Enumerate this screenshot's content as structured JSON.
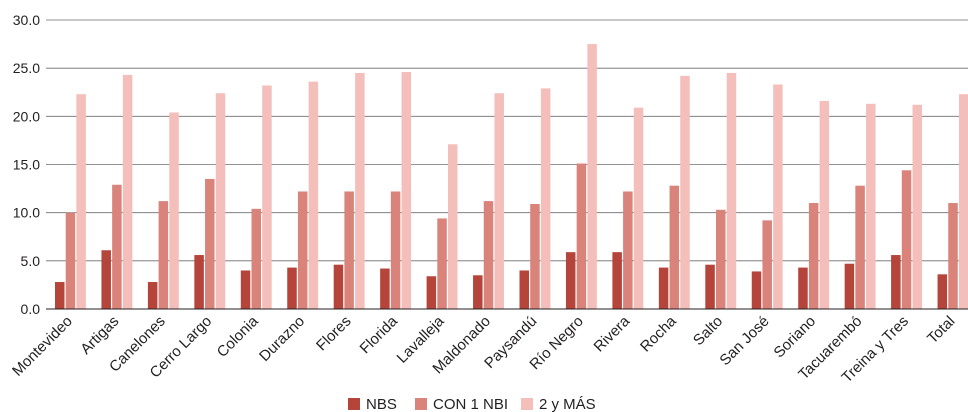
{
  "chart_data": {
    "type": "bar",
    "title": "",
    "xlabel": "",
    "ylabel": "",
    "ylim": [
      0,
      30
    ],
    "yticks": [
      "0.0",
      "5.0",
      "10.0",
      "15.0",
      "20.0",
      "25.0",
      "30.0"
    ],
    "grid": true,
    "legend_position": "bottom",
    "categories": [
      "Montevideo",
      "Artigas",
      "Canelones",
      "Cerro Largo",
      "Colonia",
      "Durazno",
      "Flores",
      "Florida",
      "Lavalleja",
      "Maldonado",
      "Paysandú",
      "Río Negro",
      "Rivera",
      "Rocha",
      "Salto",
      "San José",
      "Soriano",
      "Tacuarembó",
      "Treina y Tres",
      "Total"
    ],
    "series": [
      {
        "name": "NBS",
        "color": "#b5443a",
        "values": [
          2.8,
          6.1,
          2.8,
          5.6,
          4.0,
          4.3,
          4.6,
          4.2,
          3.4,
          3.5,
          4.0,
          5.9,
          5.9,
          4.3,
          4.6,
          3.9,
          4.3,
          4.7,
          5.6,
          3.6
        ]
      },
      {
        "name": "CON 1 NBI",
        "color": "#d9837b",
        "values": [
          10.0,
          12.9,
          11.2,
          13.5,
          10.4,
          12.2,
          12.2,
          12.2,
          9.4,
          11.2,
          10.9,
          15.1,
          12.2,
          12.8,
          10.3,
          9.2,
          11.0,
          12.8,
          14.4,
          11.0
        ]
      },
      {
        "name": "2 y MÁS",
        "color": "#f4bfba",
        "values": [
          22.3,
          24.3,
          20.4,
          22.4,
          23.2,
          23.6,
          24.5,
          24.6,
          17.1,
          22.4,
          22.9,
          27.5,
          20.9,
          24.2,
          24.5,
          23.3,
          21.6,
          21.3,
          21.2,
          22.3
        ]
      }
    ]
  }
}
